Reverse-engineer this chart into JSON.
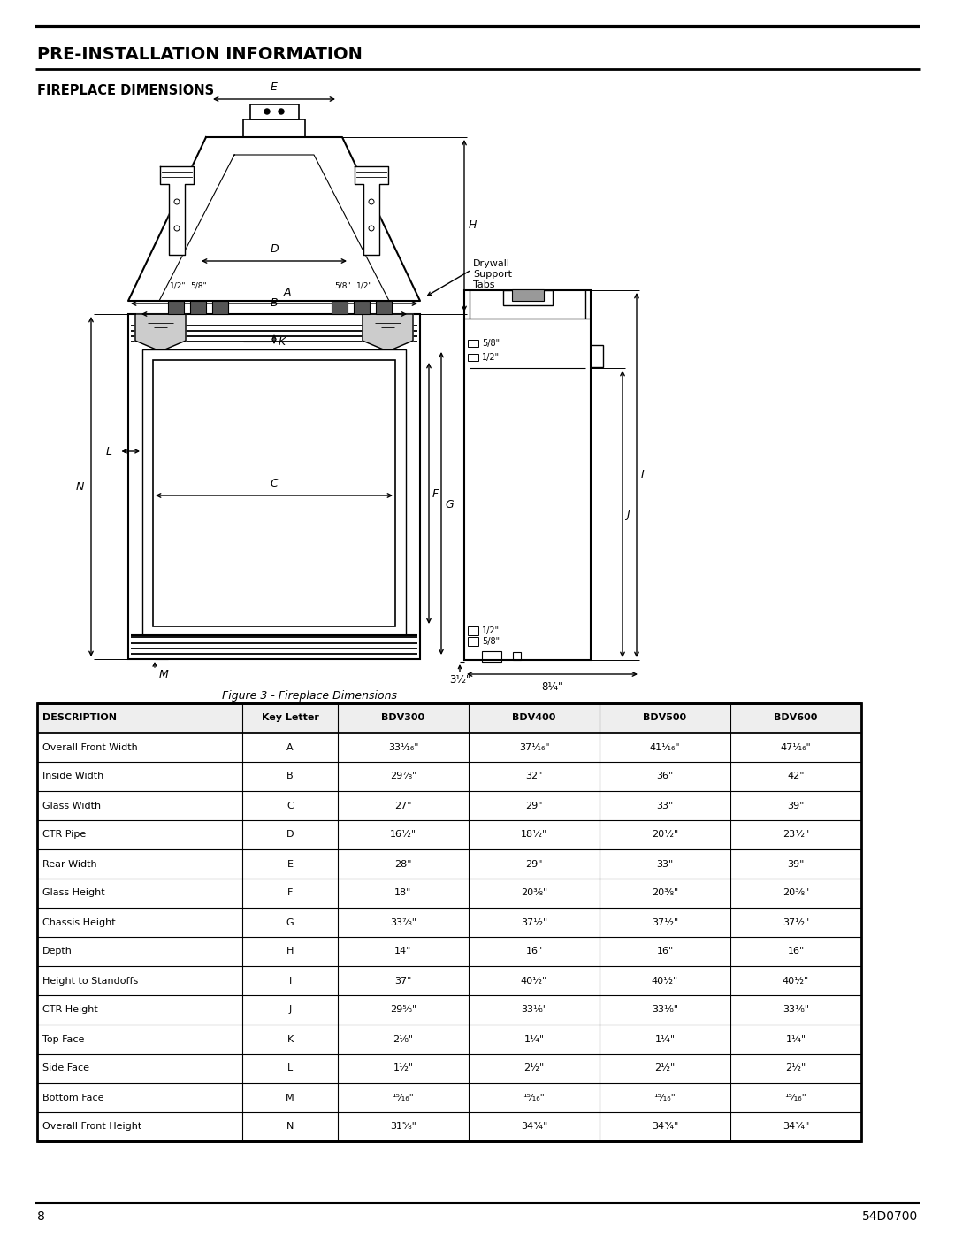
{
  "title_main": "PRE-INSTALLATION INFORMATION",
  "title_sub": "FIREPLACE DIMENSIONS",
  "figure_caption": "Figure 3 - Fireplace Dimensions",
  "page_number": "8",
  "doc_number": "54D0700",
  "table_headers": [
    "DESCRIPTION",
    "Key Letter",
    "BDV300",
    "BDV400",
    "BDV500",
    "BDV600"
  ],
  "table_rows": [
    [
      "Overall Front Width",
      "A",
      "33¹⁄₁₆\"",
      "37¹⁄₁₆\"",
      "41¹⁄₁₆\"",
      "47¹⁄₁₆\""
    ],
    [
      "Inside Width",
      "B",
      "29⁷⁄₈\"",
      "32\"",
      "36\"",
      "42\""
    ],
    [
      "Glass Width",
      "C",
      "27\"",
      "29\"",
      "33\"",
      "39\""
    ],
    [
      "CTR Pipe",
      "D",
      "16¹⁄₂\"",
      "18¹⁄₂\"",
      "20¹⁄₂\"",
      "23¹⁄₂\""
    ],
    [
      "Rear Width",
      "E",
      "28\"",
      "29\"",
      "33\"",
      "39\""
    ],
    [
      "Glass Height",
      "F",
      "18\"",
      "20³⁄₈\"",
      "20³⁄₈\"",
      "20³⁄₈\""
    ],
    [
      "Chassis Height",
      "G",
      "33⁷⁄₈\"",
      "37¹⁄₂\"",
      "37¹⁄₂\"",
      "37¹⁄₂\""
    ],
    [
      "Depth",
      "H",
      "14\"",
      "16\"",
      "16\"",
      "16\""
    ],
    [
      "Height to Standoffs",
      "I",
      "37\"",
      "40¹⁄₂\"",
      "40¹⁄₂\"",
      "40¹⁄₂\""
    ],
    [
      "CTR Height",
      "J",
      "29⁵⁄₈\"",
      "33¹⁄₈\"",
      "33¹⁄₈\"",
      "33¹⁄₈\""
    ],
    [
      "Top Face",
      "K",
      "2¹⁄₈\"",
      "1¹⁄₄\"",
      "1¹⁄₄\"",
      "1¹⁄₄\""
    ],
    [
      "Side Face",
      "L",
      "1¹⁄₂\"",
      "2¹⁄₂\"",
      "2¹⁄₂\"",
      "2¹⁄₂\""
    ],
    [
      "Bottom Face",
      "M",
      "¹⁵⁄₁₆\"",
      "¹⁵⁄₁₆\"",
      "¹⁵⁄₁₆\"",
      "¹⁵⁄₁₆\""
    ],
    [
      "Overall Front Height",
      "N",
      "31⁵⁄₈\"",
      "34³⁄₄\"",
      "34³⁄₄\"",
      "34³⁄₄\""
    ]
  ],
  "bg_color": "#ffffff",
  "line_color": "#000000"
}
